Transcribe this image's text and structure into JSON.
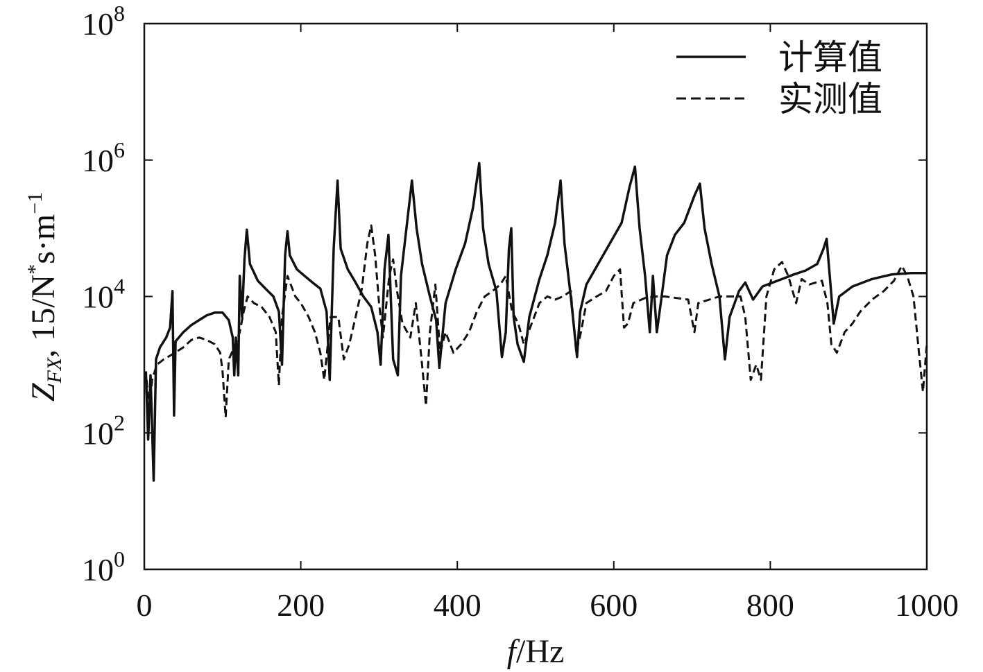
{
  "chart_data": {
    "type": "line",
    "xlabel_var": "f",
    "xlabel_unit": "/Hz",
    "ylabel_var": "Z",
    "ylabel_sub": "FX",
    "ylabel_rest": ", 15/N",
    "ylabel_sup1": "*",
    "ylabel_mid": "s·m",
    "ylabel_sup2": "−1",
    "xlim": [
      0,
      1000
    ],
    "ylim_exp": [
      0,
      8
    ],
    "yscale": "log",
    "x_ticks": [
      "0",
      "200",
      "400",
      "600",
      "800",
      "1000"
    ],
    "y_ticks": [
      {
        "base": "10",
        "exp": "0"
      },
      {
        "base": "10",
        "exp": "2"
      },
      {
        "base": "10",
        "exp": "4"
      },
      {
        "base": "10",
        "exp": "6"
      },
      {
        "base": "10",
        "exp": "8"
      }
    ],
    "legend_position": "top-right",
    "grid": false,
    "series": [
      {
        "name": "计算值",
        "style": "solid",
        "color": "#111111",
        "points": [
          [
            2,
            800
          ],
          [
            5,
            80
          ],
          [
            8,
            700
          ],
          [
            12,
            20
          ],
          [
            15,
            1200
          ],
          [
            20,
            1800
          ],
          [
            28,
            2500
          ],
          [
            33,
            3500
          ],
          [
            36,
            12000
          ],
          [
            38,
            180
          ],
          [
            40,
            2200
          ],
          [
            50,
            3000
          ],
          [
            60,
            3800
          ],
          [
            70,
            4500
          ],
          [
            80,
            5300
          ],
          [
            90,
            5800
          ],
          [
            100,
            5800
          ],
          [
            108,
            4500
          ],
          [
            113,
            2500
          ],
          [
            115,
            700
          ],
          [
            117,
            2500
          ],
          [
            120,
            700
          ],
          [
            122,
            20000
          ],
          [
            125,
            5000
          ],
          [
            128,
            35000
          ],
          [
            131,
            95000
          ],
          [
            135,
            30000
          ],
          [
            145,
            17000
          ],
          [
            155,
            13000
          ],
          [
            165,
            10000
          ],
          [
            172,
            6000
          ],
          [
            176,
            1000
          ],
          [
            180,
            40000
          ],
          [
            183,
            90000
          ],
          [
            186,
            40000
          ],
          [
            195,
            25000
          ],
          [
            205,
            20000
          ],
          [
            215,
            16000
          ],
          [
            225,
            13000
          ],
          [
            233,
            6000
          ],
          [
            237,
            600
          ],
          [
            242,
            50000
          ],
          [
            247,
            500000
          ],
          [
            251,
            50000
          ],
          [
            260,
            25000
          ],
          [
            270,
            16000
          ],
          [
            280,
            10000
          ],
          [
            290,
            7000
          ],
          [
            298,
            3000
          ],
          [
            302,
            1000
          ],
          [
            307,
            25000
          ],
          [
            312,
            80000
          ],
          [
            318,
            1200
          ],
          [
            324,
            700
          ],
          [
            328,
            20000
          ],
          [
            335,
            100000
          ],
          [
            342,
            500000
          ],
          [
            348,
            100000
          ],
          [
            355,
            30000
          ],
          [
            365,
            10000
          ],
          [
            373,
            4500
          ],
          [
            377,
            900
          ],
          [
            385,
            8000
          ],
          [
            398,
            25000
          ],
          [
            410,
            60000
          ],
          [
            420,
            200000
          ],
          [
            428,
            900000
          ],
          [
            433,
            100000
          ],
          [
            440,
            30000
          ],
          [
            450,
            12000
          ],
          [
            457,
            1300
          ],
          [
            462,
            3000
          ],
          [
            466,
            50000
          ],
          [
            469,
            100000
          ],
          [
            472,
            5000
          ],
          [
            477,
            2000
          ],
          [
            485,
            1100
          ],
          [
            492,
            5000
          ],
          [
            505,
            18000
          ],
          [
            515,
            40000
          ],
          [
            525,
            120000
          ],
          [
            532,
            500000
          ],
          [
            537,
            60000
          ],
          [
            545,
            10000
          ],
          [
            553,
            1300
          ],
          [
            557,
            6000
          ],
          [
            565,
            15000
          ],
          [
            580,
            30000
          ],
          [
            595,
            60000
          ],
          [
            610,
            120000
          ],
          [
            620,
            400000
          ],
          [
            627,
            800000
          ],
          [
            633,
            100000
          ],
          [
            640,
            20000
          ],
          [
            646,
            3000
          ],
          [
            650,
            20000
          ],
          [
            655,
            3000
          ],
          [
            660,
            8000
          ],
          [
            668,
            40000
          ],
          [
            678,
            80000
          ],
          [
            690,
            120000
          ],
          [
            703,
            300000
          ],
          [
            710,
            450000
          ],
          [
            716,
            100000
          ],
          [
            725,
            30000
          ],
          [
            735,
            10000
          ],
          [
            742,
            1200
          ],
          [
            748,
            5000
          ],
          [
            760,
            12000
          ],
          [
            768,
            16000
          ],
          [
            778,
            9000
          ],
          [
            790,
            14000
          ],
          [
            800,
            15500
          ],
          [
            815,
            18000
          ],
          [
            830,
            21000
          ],
          [
            845,
            24000
          ],
          [
            860,
            30000
          ],
          [
            868,
            50000
          ],
          [
            872,
            70000
          ],
          [
            876,
            20000
          ],
          [
            881,
            4000
          ],
          [
            888,
            10000
          ],
          [
            905,
            14000
          ],
          [
            930,
            18000
          ],
          [
            955,
            21000
          ],
          [
            980,
            22000
          ],
          [
            1000,
            22000
          ]
        ]
      },
      {
        "name": "实测值",
        "style": "dashed",
        "color": "#111111",
        "points": [
          [
            3,
            600
          ],
          [
            6,
            200
          ],
          [
            10,
            600
          ],
          [
            16,
            1000
          ],
          [
            25,
            1200
          ],
          [
            35,
            1400
          ],
          [
            50,
            1800
          ],
          [
            60,
            2300
          ],
          [
            70,
            2500
          ],
          [
            80,
            2300
          ],
          [
            90,
            2000
          ],
          [
            97,
            1500
          ],
          [
            100,
            800
          ],
          [
            104,
            170
          ],
          [
            108,
            1200
          ],
          [
            115,
            1800
          ],
          [
            122,
            3000
          ],
          [
            127,
            6000
          ],
          [
            132,
            10000
          ],
          [
            140,
            8000
          ],
          [
            150,
            7000
          ],
          [
            160,
            5000
          ],
          [
            168,
            3000
          ],
          [
            172,
            500
          ],
          [
            176,
            5000
          ],
          [
            183,
            20000
          ],
          [
            193,
            10000
          ],
          [
            200,
            8000
          ],
          [
            210,
            5000
          ],
          [
            218,
            3000
          ],
          [
            225,
            1500
          ],
          [
            230,
            600
          ],
          [
            238,
            5000
          ],
          [
            248,
            5000
          ],
          [
            255,
            1200
          ],
          [
            262,
            2000
          ],
          [
            270,
            5000
          ],
          [
            278,
            13000
          ],
          [
            285,
            60000
          ],
          [
            290,
            110000
          ],
          [
            295,
            40000
          ],
          [
            300,
            8000
          ],
          [
            305,
            2500
          ],
          [
            313,
            20000
          ],
          [
            318,
            35000
          ],
          [
            323,
            12000
          ],
          [
            330,
            4000
          ],
          [
            340,
            2500
          ],
          [
            347,
            8000
          ],
          [
            355,
            1000
          ],
          [
            360,
            250
          ],
          [
            365,
            3000
          ],
          [
            372,
            15000
          ],
          [
            378,
            1500
          ],
          [
            385,
            3000
          ],
          [
            395,
            1500
          ],
          [
            405,
            2000
          ],
          [
            415,
            3000
          ],
          [
            425,
            6000
          ],
          [
            435,
            10000
          ],
          [
            445,
            12000
          ],
          [
            455,
            15000
          ],
          [
            462,
            20000
          ],
          [
            470,
            6000
          ],
          [
            478,
            4000
          ],
          [
            485,
            2000
          ],
          [
            495,
            4000
          ],
          [
            505,
            8000
          ],
          [
            515,
            10000
          ],
          [
            525,
            9000
          ],
          [
            535,
            10000
          ],
          [
            545,
            12000
          ],
          [
            552,
            1500
          ],
          [
            558,
            3000
          ],
          [
            565,
            8000
          ],
          [
            578,
            10000
          ],
          [
            590,
            12000
          ],
          [
            600,
            20000
          ],
          [
            608,
            25000
          ],
          [
            613,
            3500
          ],
          [
            618,
            4000
          ],
          [
            625,
            8000
          ],
          [
            640,
            9500
          ],
          [
            655,
            10000
          ],
          [
            665,
            10000
          ],
          [
            680,
            9500
          ],
          [
            695,
            9000
          ],
          [
            703,
            3000
          ],
          [
            708,
            8000
          ],
          [
            722,
            9000
          ],
          [
            735,
            10000
          ],
          [
            750,
            10000
          ],
          [
            762,
            10000
          ],
          [
            768,
            5000
          ],
          [
            775,
            600
          ],
          [
            782,
            1000
          ],
          [
            788,
            600
          ],
          [
            795,
            10000
          ],
          [
            805,
            25000
          ],
          [
            815,
            32000
          ],
          [
            823,
            20000
          ],
          [
            833,
            8000
          ],
          [
            840,
            18000
          ],
          [
            850,
            15000
          ],
          [
            858,
            16000
          ],
          [
            866,
            17000
          ],
          [
            873,
            8000
          ],
          [
            878,
            2000
          ],
          [
            885,
            1500
          ],
          [
            895,
            3000
          ],
          [
            905,
            4000
          ],
          [
            915,
            6000
          ],
          [
            930,
            9000
          ],
          [
            945,
            12000
          ],
          [
            958,
            17000
          ],
          [
            968,
            28000
          ],
          [
            975,
            20000
          ],
          [
            983,
            10000
          ],
          [
            990,
            1500
          ],
          [
            995,
            400
          ],
          [
            1000,
            2000
          ]
        ]
      }
    ]
  }
}
